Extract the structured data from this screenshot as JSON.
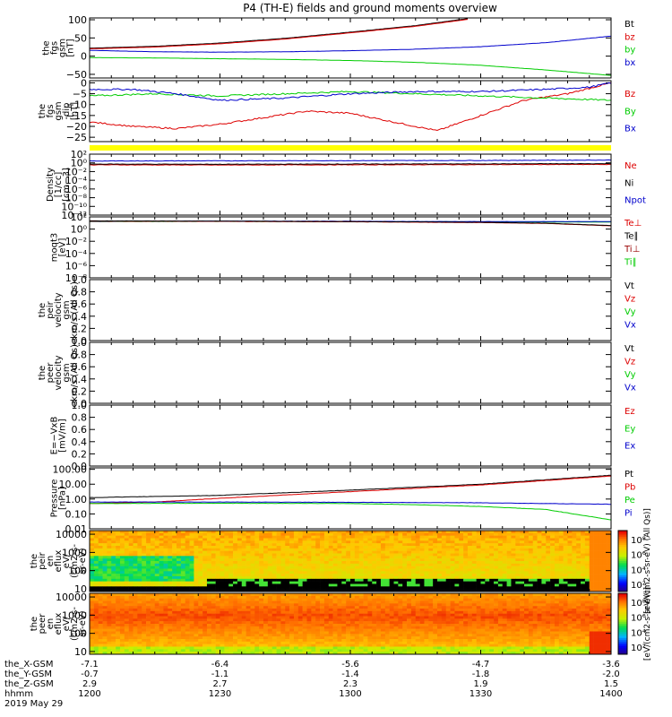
{
  "title": "P4 (TH-E) fields and ground moments overview",
  "colors": {
    "black": "#000000",
    "red": "#dd0000",
    "green": "#00cc00",
    "blue": "#0000cc",
    "yellow": "#ffff00",
    "darkred": "#990000"
  },
  "chart_data": [
    {
      "type": "line",
      "ylabel": [
        "the",
        "fgs",
        "gsm",
        "[nT]"
      ],
      "yticks": [
        "100",
        "50",
        "0",
        "−50"
      ],
      "ylim": [
        -60,
        105
      ],
      "legend": [
        {
          "name": "Bt",
          "color": "#000000"
        },
        {
          "name": "bz",
          "color": "#dd0000"
        },
        {
          "name": "by",
          "color": "#00cc00"
        },
        {
          "name": "bx",
          "color": "#0000cc"
        }
      ],
      "series": [
        {
          "name": "Bt",
          "color": "#000000",
          "x": [
            1200,
            1215,
            1230,
            1245,
            1300,
            1315,
            1327
          ],
          "y": [
            22,
            27,
            36,
            49,
            66,
            84,
            103
          ]
        },
        {
          "name": "bz",
          "color": "#dd0000",
          "x": [
            1200,
            1215,
            1230,
            1245,
            1300,
            1315,
            1327
          ],
          "y": [
            20,
            25,
            34,
            47,
            64,
            82,
            101
          ]
        },
        {
          "name": "by",
          "color": "#00cc00",
          "x": [
            1200,
            1215,
            1230,
            1245,
            1300,
            1315,
            1330,
            1345,
            1400
          ],
          "y": [
            -4,
            -5,
            -7,
            -9,
            -12,
            -17,
            -25,
            -38,
            -53
          ]
        },
        {
          "name": "bx",
          "color": "#0000cc",
          "x": [
            1200,
            1215,
            1230,
            1245,
            1300,
            1315,
            1330,
            1345,
            1400
          ],
          "y": [
            16,
            12,
            11,
            12,
            15,
            19,
            26,
            37,
            55
          ]
        }
      ]
    },
    {
      "type": "line",
      "ylabel": [
        "the",
        "fgs",
        "gsm",
        "-dip",
        "[nT]"
      ],
      "yticks": [
        "0",
        "−5",
        "−10",
        "−15",
        "−20",
        "−25"
      ],
      "ylim": [
        -27,
        1
      ],
      "legend": [
        {
          "name": "Bz",
          "color": "#dd0000"
        },
        {
          "name": "By",
          "color": "#00cc00"
        },
        {
          "name": "Bx",
          "color": "#0000cc"
        }
      ],
      "series": [
        {
          "name": "Bz",
          "color": "#dd0000",
          "x": [
            1200,
            1210,
            1220,
            1230,
            1240,
            1250,
            1300,
            1310,
            1320,
            1330,
            1340,
            1350,
            1400
          ],
          "y": [
            -18,
            -20,
            -21,
            -19,
            -16,
            -13,
            -14,
            -18,
            -22,
            -15,
            -8,
            -5,
            0
          ]
        },
        {
          "name": "By",
          "color": "#00cc00",
          "x": [
            1200,
            1215,
            1230,
            1245,
            1300,
            1315,
            1330,
            1345,
            1400
          ],
          "y": [
            -6,
            -5,
            -6,
            -5,
            -4,
            -5,
            -6,
            -7,
            -8
          ]
        },
        {
          "name": "Bx",
          "color": "#0000cc",
          "x": [
            1200,
            1210,
            1220,
            1230,
            1245,
            1300,
            1315,
            1330,
            1345,
            1355,
            1400
          ],
          "y": [
            -3,
            -3,
            -5,
            -8,
            -7,
            -5,
            -4,
            -4,
            -3,
            -2,
            0
          ]
        }
      ]
    },
    {
      "type": "line",
      "ylabel": [
        "Density",
        "[1/cc]",
        "[cm−3]"
      ],
      "yticks": [
        "10²",
        "10⁰",
        "10⁻²",
        "10⁻⁴",
        "10⁻⁶",
        "10⁻⁸",
        "10⁻¹⁰",
        "10⁻¹²"
      ],
      "ylog": true,
      "ylim": [
        -13,
        3
      ],
      "legend": [
        {
          "name": "Ne",
          "color": "#dd0000"
        },
        {
          "name": "Ni",
          "color": "#000000"
        },
        {
          "name": "Npot",
          "color": "#0000cc"
        }
      ],
      "series": [
        {
          "name": "Npot",
          "color": "#0000cc",
          "x": [
            1200,
            1230,
            1300,
            1330,
            1400
          ],
          "y": [
            1.2,
            1.25,
            1.3,
            1.35,
            1.45
          ]
        },
        {
          "name": "Ne",
          "color": "#dd0000",
          "x": [
            1200,
            1230,
            1300,
            1330,
            1400
          ],
          "y": [
            0.2,
            0.15,
            0.2,
            0.25,
            0.3
          ]
        },
        {
          "name": "Ni",
          "color": "#000000",
          "x": [
            1200,
            1230,
            1300,
            1330,
            1400
          ],
          "y": [
            0.4,
            0.35,
            0.4,
            0.45,
            0.5
          ]
        }
      ]
    },
    {
      "type": "line",
      "ylabel": [
        "moqt3",
        "[eV]"
      ],
      "yticks": [
        "10²",
        "10⁰",
        "10⁻²",
        "10⁻⁴",
        "10⁻⁶",
        "10⁻⁸"
      ],
      "ylog": true,
      "ylim": [
        -10,
        3
      ],
      "legend": [
        {
          "name": "Te⊥",
          "color": "#dd0000"
        },
        {
          "name": "Te∥",
          "color": "#000000"
        },
        {
          "name": "Ti⊥",
          "color": "#990000"
        },
        {
          "name": "Ti∥",
          "color": "#00cc00"
        }
      ],
      "series": [
        {
          "name": "Ti∥",
          "color": "#00cc00",
          "x": [
            1200,
            1230,
            1300,
            1330,
            1400
          ],
          "y": [
            2.0,
            2.05,
            2.0,
            1.95,
            1.9
          ]
        },
        {
          "name": "Ti⊥",
          "color": "#0000cc",
          "x": [
            1200,
            1230,
            1300,
            1330,
            1400
          ],
          "y": [
            2.05,
            2.1,
            2.05,
            2.0,
            2.0
          ]
        },
        {
          "name": "Te⊥",
          "color": "#dd0000",
          "x": [
            1200,
            1230,
            1300,
            1330,
            1345,
            1400
          ],
          "y": [
            2.1,
            2.05,
            1.95,
            1.8,
            1.6,
            1.1
          ]
        },
        {
          "name": "Te∥",
          "color": "#000000",
          "x": [
            1200,
            1230,
            1300,
            1330,
            1345,
            1400
          ],
          "y": [
            2.15,
            2.1,
            2.0,
            1.85,
            1.65,
            1.15
          ]
        }
      ]
    },
    {
      "type": "line",
      "ylabel": [
        "the",
        "peir",
        "velocity",
        "gsm",
        "km/s (All Qs)"
      ],
      "yticks": [
        "1.0",
        "0.8",
        "0.6",
        "0.4",
        "0.2",
        "0.0"
      ],
      "ylim": [
        0,
        1
      ],
      "legend": [
        {
          "name": "Vt",
          "color": "#000000"
        },
        {
          "name": "Vz",
          "color": "#dd0000"
        },
        {
          "name": "Vy",
          "color": "#00cc00"
        },
        {
          "name": "Vx",
          "color": "#0000cc"
        }
      ],
      "series": []
    },
    {
      "type": "line",
      "ylabel": [
        "the",
        "peer",
        "velocity",
        "gsm",
        "km/s (All Qs)"
      ],
      "yticks": [
        "1.0",
        "0.8",
        "0.6",
        "0.4",
        "0.2",
        "0.0"
      ],
      "ylim": [
        0,
        1
      ],
      "legend": [
        {
          "name": "Vt",
          "color": "#000000"
        },
        {
          "name": "Vz",
          "color": "#dd0000"
        },
        {
          "name": "Vy",
          "color": "#00cc00"
        },
        {
          "name": "Vx",
          "color": "#0000cc"
        }
      ],
      "series": []
    },
    {
      "type": "line",
      "ylabel": [
        "E=−VxB",
        "[mV/m]"
      ],
      "yticks": [
        "1.0",
        "0.8",
        "0.6",
        "0.4",
        "0.2",
        "0.0"
      ],
      "ylim": [
        0,
        1
      ],
      "legend": [
        {
          "name": "Ez",
          "color": "#dd0000"
        },
        {
          "name": "Ey",
          "color": "#00cc00"
        },
        {
          "name": "Ex",
          "color": "#0000cc"
        }
      ],
      "series": []
    },
    {
      "type": "line",
      "ylabel": [
        "Pressure",
        "[nPa]"
      ],
      "yticks": [
        "100.00",
        "10.00",
        "1.00",
        "0.10",
        "0.01"
      ],
      "ylog": true,
      "ylim": [
        -2,
        2.1
      ],
      "legend": [
        {
          "name": "Pt",
          "color": "#000000"
        },
        {
          "name": "Pb",
          "color": "#dd0000"
        },
        {
          "name": "Pe",
          "color": "#00cc00"
        },
        {
          "name": "Pi",
          "color": "#0000cc"
        }
      ],
      "series": [
        {
          "name": "Pt",
          "color": "#000000",
          "x": [
            1200,
            1230,
            1300,
            1330,
            1400
          ],
          "y": [
            0.1,
            0.25,
            0.6,
            1.0,
            1.6
          ]
        },
        {
          "name": "Pb",
          "color": "#dd0000",
          "x": [
            1200,
            1215,
            1230,
            1300,
            1330,
            1400
          ],
          "y": [
            -0.3,
            -0.2,
            0.05,
            0.5,
            0.95,
            1.55
          ]
        },
        {
          "name": "Pi",
          "color": "#0000cc",
          "x": [
            1200,
            1230,
            1300,
            1330,
            1345,
            1400
          ],
          "y": [
            -0.2,
            -0.2,
            -0.22,
            -0.25,
            -0.3,
            -0.35
          ]
        },
        {
          "name": "Pe",
          "color": "#00cc00",
          "x": [
            1200,
            1230,
            1300,
            1315,
            1330,
            1345,
            1400
          ],
          "y": [
            -0.3,
            -0.28,
            -0.3,
            -0.38,
            -0.5,
            -0.7,
            -1.4
          ]
        }
      ]
    },
    {
      "type": "heatmap",
      "ylabel": [
        "the",
        "peir",
        "en",
        "eflux",
        "eV/",
        "(cm2-s-",
        "sr-eV)"
      ],
      "yticks": [
        "10000",
        "1000",
        "100",
        "10"
      ],
      "ylog": true,
      "colorbar": {
        "ticks": [
          "10⁸",
          "10⁶",
          "10⁴",
          "10²"
        ],
        "label": "[eV/(cm2-s-sr-eV) (All Qs)]"
      }
    },
    {
      "type": "heatmap",
      "ylabel": [
        "the",
        "peer",
        "en",
        "eflux",
        "eV/",
        "(cm2-s-",
        "sr-eV)"
      ],
      "yticks": [
        "10000",
        "1000",
        "100",
        "10"
      ],
      "ylog": true,
      "colorbar": {
        "ticks": [
          "10⁸",
          "10⁶",
          "10⁴",
          "10²"
        ],
        "label": "[eV/(cm2-s-sr-eV)]"
      }
    }
  ],
  "xaxis": {
    "rows": [
      {
        "label": "the_X-GSM",
        "values": [
          "-7.1",
          "-6.4",
          "-5.6",
          "-4.7",
          "-3.6"
        ]
      },
      {
        "label": "the_Y-GSM",
        "values": [
          "-0.7",
          "-1.1",
          "-1.4",
          "-1.8",
          "-2.0"
        ]
      },
      {
        "label": "the_Z-GSM",
        "values": [
          "2.9",
          "2.7",
          "2.3",
          "1.9",
          "1.5"
        ]
      },
      {
        "label": "hhmm",
        "values": [
          "1200",
          "1230",
          "1300",
          "1330",
          "1400"
        ]
      }
    ],
    "date": "2019 May 29"
  }
}
